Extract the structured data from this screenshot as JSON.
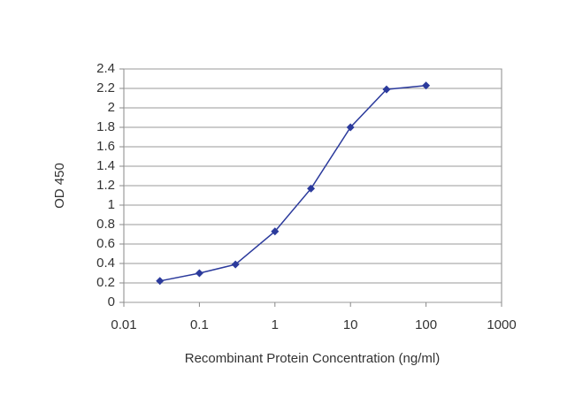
{
  "chart_data": {
    "type": "line",
    "x_label": "Recombinant Protein Concentration (ng/ml)",
    "y_label": "OD 450",
    "x": [
      0.03,
      0.1,
      0.3,
      1,
      3,
      10,
      30,
      100
    ],
    "series": [
      {
        "color": "#2b3a9c",
        "values": [
          0.22,
          0.3,
          0.39,
          0.73,
          1.17,
          1.8,
          2.19,
          2.23
        ]
      }
    ],
    "xlim": [
      0.01,
      1000
    ],
    "xticks": [
      0.01,
      0.1,
      1,
      10,
      100,
      1000
    ],
    "x_log": true,
    "ylim": [
      0,
      2.4
    ],
    "yticks": [
      0,
      0.2,
      0.4,
      0.6,
      0.8,
      1,
      1.2,
      1.4,
      1.6,
      1.8,
      2,
      2.2,
      2.4
    ],
    "grid": true
  }
}
